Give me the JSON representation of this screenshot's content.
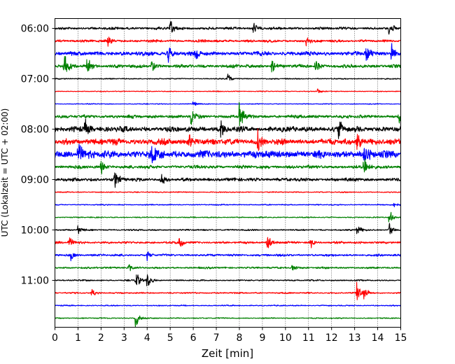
{
  "chart_data": {
    "type": "line",
    "title": "",
    "xlabel": "Zeit  [min]",
    "ylabel": "UTC (Lokalzeit = UTC + 02:00)",
    "xlim": [
      0,
      15
    ],
    "x_ticks": [
      0,
      1,
      2,
      3,
      4,
      5,
      6,
      7,
      8,
      9,
      10,
      11,
      12,
      13,
      14,
      15
    ],
    "x_grid": "dotted vertical lines at each minute",
    "y_ticks": [
      "06:00",
      "07:00",
      "08:00",
      "09:00",
      "10:00",
      "11:00"
    ],
    "trace_interval_minutes": 15,
    "color_cycle": [
      "#000000",
      "#ff0000",
      "#0000ff",
      "#008000"
    ],
    "traces": [
      {
        "start": "06:00",
        "color": "black",
        "amplitude": 0.35,
        "events": [
          {
            "t": 5.0,
            "a": 1.0
          },
          {
            "t": 8.6,
            "a": 0.6
          },
          {
            "t": 14.5,
            "a": 0.6
          }
        ]
      },
      {
        "start": "06:15",
        "color": "red",
        "amplitude": 0.35,
        "events": [
          {
            "t": 2.3,
            "a": 0.5
          },
          {
            "t": 10.9,
            "a": 0.4
          }
        ]
      },
      {
        "start": "06:30",
        "color": "blue",
        "amplitude": 0.55,
        "events": [
          {
            "t": 4.9,
            "a": 0.9
          },
          {
            "t": 6.1,
            "a": 0.8
          },
          {
            "t": 13.5,
            "a": 1.1
          },
          {
            "t": 14.6,
            "a": 1.0
          }
        ]
      },
      {
        "start": "06:45",
        "color": "green",
        "amplitude": 0.45,
        "events": [
          {
            "t": 0.4,
            "a": 1.3
          },
          {
            "t": 1.4,
            "a": 0.8
          },
          {
            "t": 4.2,
            "a": 0.7
          },
          {
            "t": 9.4,
            "a": 0.6
          },
          {
            "t": 11.3,
            "a": 0.7
          }
        ]
      },
      {
        "start": "07:00",
        "color": "black",
        "amplitude": 0.15,
        "events": [
          {
            "t": 7.5,
            "a": 0.5
          }
        ]
      },
      {
        "start": "07:15",
        "color": "red",
        "amplitude": 0.12,
        "events": [
          {
            "t": 11.4,
            "a": 0.3
          }
        ]
      },
      {
        "start": "07:30",
        "color": "blue",
        "amplitude": 0.12,
        "events": [
          {
            "t": 6.0,
            "a": 0.3
          }
        ]
      },
      {
        "start": "07:45",
        "color": "green",
        "amplitude": 0.45,
        "events": [
          {
            "t": 5.9,
            "a": 1.0
          },
          {
            "t": 8.0,
            "a": 1.5
          },
          {
            "t": 14.9,
            "a": 0.7
          }
        ]
      },
      {
        "start": "08:00",
        "color": "black",
        "amplitude": 0.7,
        "events": [
          {
            "t": 1.3,
            "a": 1.0
          },
          {
            "t": 7.2,
            "a": 0.9
          },
          {
            "t": 12.3,
            "a": 1.0
          }
        ]
      },
      {
        "start": "08:15",
        "color": "red",
        "amplitude": 0.8,
        "events": [
          {
            "t": 5.8,
            "a": 1.0
          },
          {
            "t": 8.8,
            "a": 1.0
          },
          {
            "t": 13.1,
            "a": 0.9
          }
        ]
      },
      {
        "start": "08:30",
        "color": "blue",
        "amplitude": 1.0,
        "events": [
          {
            "t": 1.0,
            "a": 1.2
          },
          {
            "t": 4.2,
            "a": 1.0
          },
          {
            "t": 13.4,
            "a": 0.8
          }
        ]
      },
      {
        "start": "08:45",
        "color": "green",
        "amplitude": 0.45,
        "events": [
          {
            "t": 2.0,
            "a": 0.6
          },
          {
            "t": 13.4,
            "a": 1.3
          }
        ]
      },
      {
        "start": "09:00",
        "color": "black",
        "amplitude": 0.45,
        "events": [
          {
            "t": 2.6,
            "a": 0.9
          },
          {
            "t": 4.6,
            "a": 0.7
          }
        ]
      },
      {
        "start": "09:15",
        "color": "red",
        "amplitude": 0.15,
        "events": []
      },
      {
        "start": "09:30",
        "color": "blue",
        "amplitude": 0.15,
        "events": [
          {
            "t": 14.7,
            "a": 0.3
          }
        ]
      },
      {
        "start": "09:45",
        "color": "green",
        "amplitude": 0.15,
        "events": [
          {
            "t": 14.5,
            "a": 0.9
          }
        ]
      },
      {
        "start": "10:00",
        "color": "black",
        "amplitude": 0.2,
        "events": [
          {
            "t": 1.0,
            "a": 0.4
          },
          {
            "t": 13.1,
            "a": 0.6
          },
          {
            "t": 14.5,
            "a": 0.7
          }
        ]
      },
      {
        "start": "10:15",
        "color": "red",
        "amplitude": 0.3,
        "events": [
          {
            "t": 0.6,
            "a": 0.6
          },
          {
            "t": 5.4,
            "a": 0.6
          },
          {
            "t": 9.2,
            "a": 0.9
          },
          {
            "t": 11.1,
            "a": 0.5
          }
        ]
      },
      {
        "start": "10:30",
        "color": "blue",
        "amplitude": 0.3,
        "events": [
          {
            "t": 0.7,
            "a": 0.5
          },
          {
            "t": 4.0,
            "a": 0.4
          }
        ]
      },
      {
        "start": "10:45",
        "color": "green",
        "amplitude": 0.25,
        "events": [
          {
            "t": 3.2,
            "a": 0.4
          },
          {
            "t": 10.3,
            "a": 0.4
          }
        ]
      },
      {
        "start": "11:00",
        "color": "black",
        "amplitude": 0.2,
        "events": [
          {
            "t": 3.5,
            "a": 1.1
          },
          {
            "t": 4.0,
            "a": 0.8
          }
        ]
      },
      {
        "start": "11:15",
        "color": "red",
        "amplitude": 0.2,
        "events": [
          {
            "t": 1.6,
            "a": 0.4
          },
          {
            "t": 13.1,
            "a": 1.0
          },
          {
            "t": 13.4,
            "a": 0.8
          }
        ]
      },
      {
        "start": "11:30",
        "color": "blue",
        "amplitude": 0.15,
        "events": []
      },
      {
        "start": "11:45",
        "color": "green",
        "amplitude": 0.15,
        "events": [
          {
            "t": 3.5,
            "a": 0.9
          }
        ]
      }
    ]
  }
}
